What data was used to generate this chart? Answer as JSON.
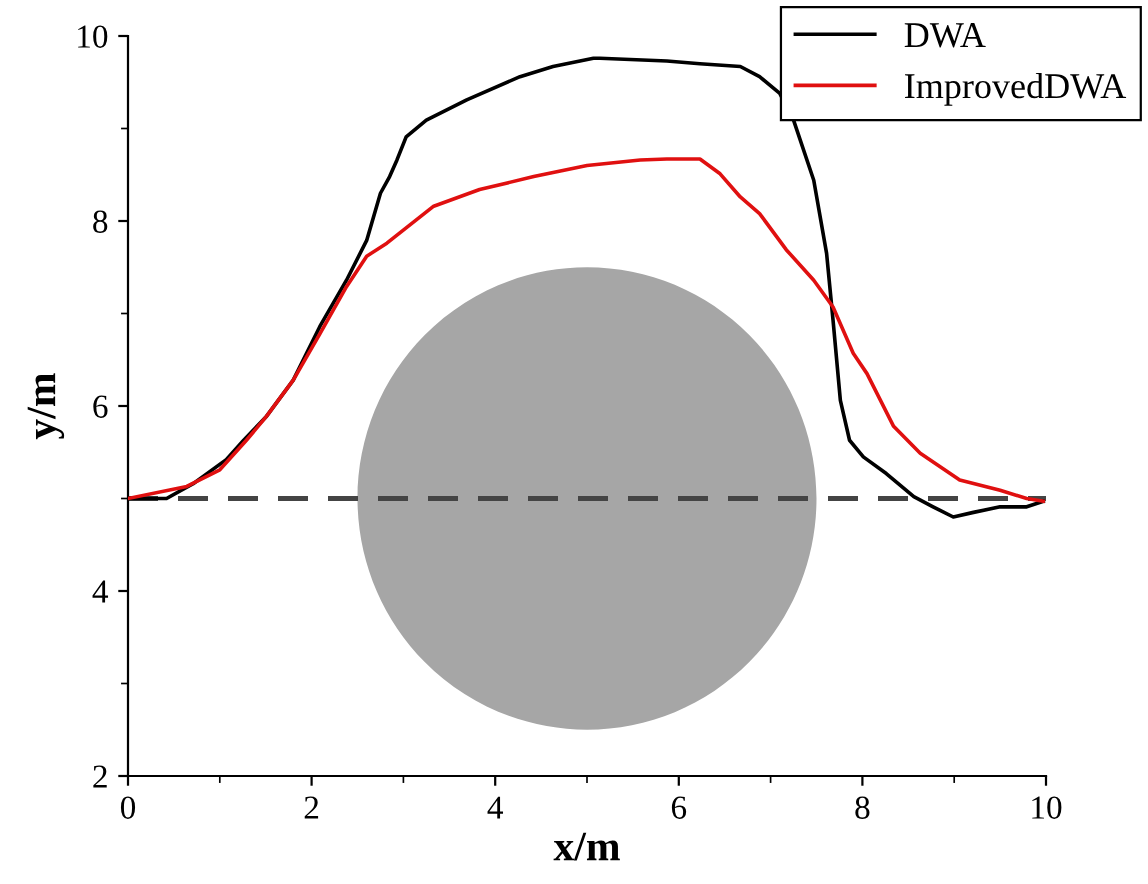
{
  "chart_data": {
    "type": "line",
    "xlabel": "x/m",
    "ylabel": "y/m",
    "xlim": [
      0,
      10
    ],
    "ylim": [
      2,
      10
    ],
    "xticks": [
      0,
      2,
      4,
      6,
      8,
      10
    ],
    "yticks": [
      2,
      4,
      6,
      8,
      10
    ],
    "grid": false,
    "legend": "top right",
    "marker": "none",
    "line_style": "solid",
    "series": [
      {
        "name": "DWA",
        "color": "#000000",
        "x": [
          0,
          0.42,
          0.71,
          1.07,
          1.26,
          1.51,
          1.8,
          2.09,
          2.38,
          2.6,
          2.75,
          2.85,
          2.93,
          3.03,
          3.25,
          3.69,
          4.27,
          4.63,
          5.07,
          5.14,
          5.87,
          6.23,
          6.67,
          6.88,
          7.1,
          7.25,
          7.47,
          7.61,
          7.68,
          7.76,
          7.86,
          8.01,
          8.26,
          8.56,
          8.77,
          8.99,
          9.21,
          9.5,
          9.79,
          9.97
        ],
        "values": [
          5.0,
          5.0,
          5.16,
          5.42,
          5.63,
          5.89,
          6.28,
          6.86,
          7.36,
          7.79,
          8.3,
          8.48,
          8.66,
          8.91,
          9.09,
          9.31,
          9.56,
          9.67,
          9.76,
          9.76,
          9.73,
          9.7,
          9.67,
          9.56,
          9.38,
          9.09,
          8.44,
          7.65,
          6.93,
          6.06,
          5.63,
          5.45,
          5.27,
          5.02,
          4.91,
          4.8,
          4.85,
          4.91,
          4.91,
          4.97
        ]
      },
      {
        "name": "ImprovedDWA",
        "color": "#e01010",
        "x": [
          0,
          0.64,
          1.0,
          1.29,
          1.51,
          1.8,
          2.09,
          2.38,
          2.6,
          2.82,
          3.33,
          3.83,
          4.42,
          5.0,
          5.58,
          5.87,
          6.23,
          6.45,
          6.67,
          6.88,
          7.17,
          7.47,
          7.68,
          7.9,
          8.05,
          8.34,
          8.63,
          9.06,
          9.5,
          9.79,
          9.97
        ],
        "values": [
          5.0,
          5.13,
          5.31,
          5.63,
          5.89,
          6.28,
          6.78,
          7.29,
          7.62,
          7.76,
          8.16,
          8.34,
          8.48,
          8.6,
          8.66,
          8.67,
          8.67,
          8.51,
          8.26,
          8.08,
          7.69,
          7.36,
          7.07,
          6.57,
          6.35,
          5.78,
          5.49,
          5.2,
          5.09,
          5.0,
          4.97
        ]
      }
    ],
    "ref_lines": [
      {
        "axis": "y",
        "value": 5,
        "color": "#444444",
        "line_style": "dashed"
      }
    ]
  }
}
